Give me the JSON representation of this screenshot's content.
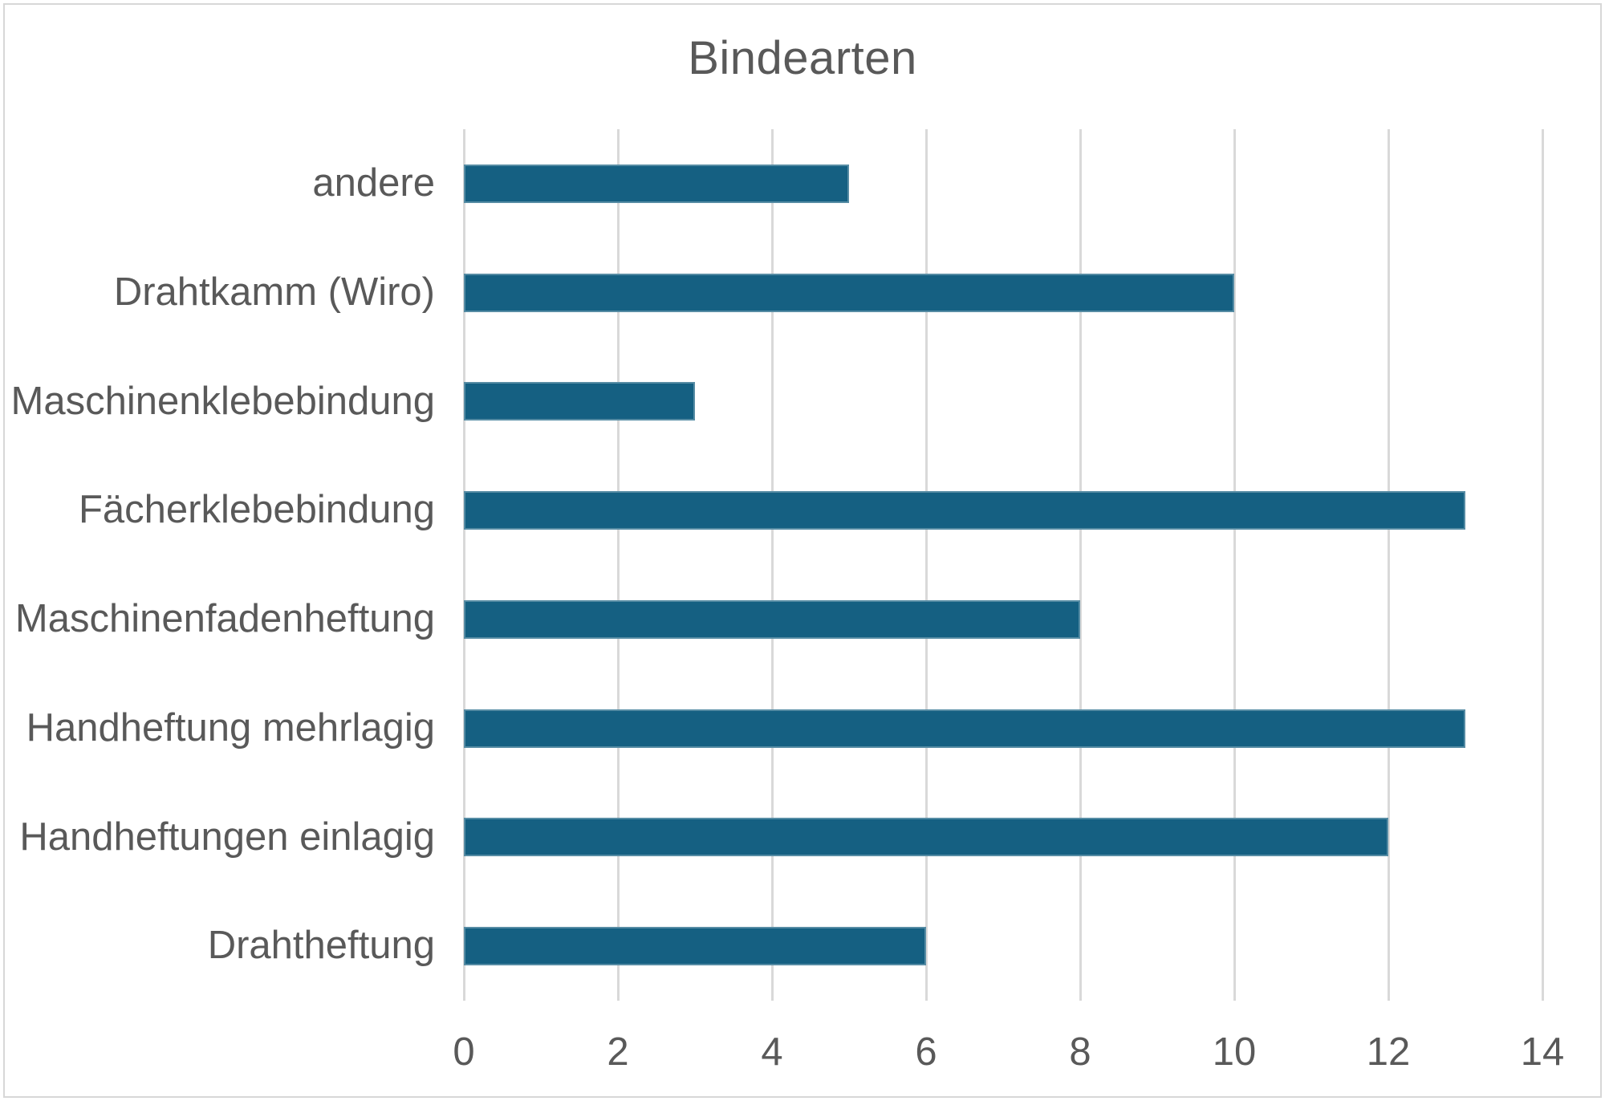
{
  "chart_data": {
    "type": "bar",
    "orientation": "horizontal",
    "title": "Bindearten",
    "categories": [
      "andere",
      "Drahtkamm (Wiro)",
      "Maschinenklebebindung",
      "Fächerklebebindung",
      "Maschinenfadenheftung",
      "Handheftung mehrlagig",
      "Handheftungen einlagig",
      "Drahtheftung"
    ],
    "categories_order": "top-to-bottom",
    "values": [
      5,
      10,
      3,
      13,
      8,
      13,
      12,
      6
    ],
    "xlabel": "",
    "ylabel": "",
    "xlim": [
      0,
      14
    ],
    "xticks": [
      0,
      2,
      4,
      6,
      8,
      10,
      12,
      14
    ],
    "grid": "vertical-gridlines-on",
    "legend": "none",
    "colors": {
      "bar": "#156082",
      "gridline": "#d9d9d9",
      "text": "#595959",
      "border": "#d7d7d7",
      "background": "#ffffff"
    }
  }
}
